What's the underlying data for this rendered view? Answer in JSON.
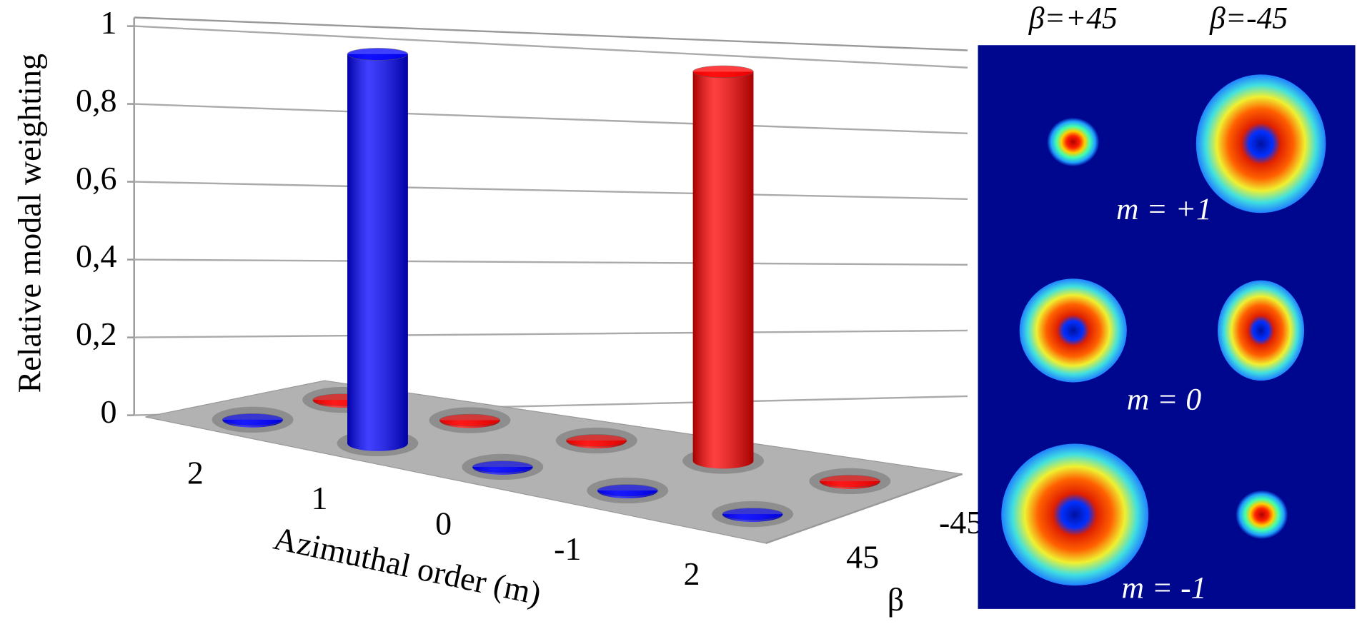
{
  "chart_data": {
    "type": "bar3d",
    "y_label": "Relative modal weighting",
    "x_label": "Azimuthal order (m)",
    "z_label": "β",
    "categories": [
      "2",
      "1",
      "0",
      "-1",
      "2"
    ],
    "depth_categories": [
      "45",
      "-45"
    ],
    "series": [
      {
        "name": "45",
        "color": "#0000ff",
        "values": [
          0,
          1,
          0,
          0,
          0
        ]
      },
      {
        "name": "-45",
        "color": "#ff0000",
        "values": [
          0,
          0,
          0,
          1,
          0
        ]
      }
    ],
    "ylim": [
      0,
      1
    ],
    "yticks": [
      0,
      {
        "value": 0.2,
        "label": "0,2"
      },
      {
        "value": 0.4,
        "label": "0,4"
      },
      {
        "value": 0.6,
        "label": "0,6"
      },
      {
        "value": 0.8,
        "label": "0,8"
      },
      1
    ],
    "grid": true
  },
  "panel": {
    "columns": [
      "β=+45",
      "β=-45"
    ],
    "rows": [
      "m = +1",
      "m = 0",
      "m = -1"
    ]
  }
}
